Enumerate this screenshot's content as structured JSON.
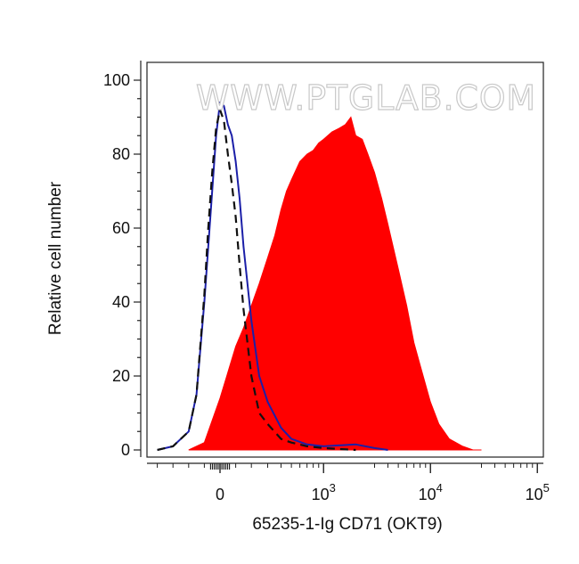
{
  "watermark": "WWW.PTGLAB.COM",
  "chart_data": {
    "type": "area",
    "title": "",
    "xlabel": "65235-1-Ig CD71 (OKT9)",
    "ylabel": "Relative cell number",
    "x_scale": "biexponential",
    "xlim": [
      -300,
      100000
    ],
    "ylim": [
      0,
      100
    ],
    "x_ticks": [
      {
        "value": 0,
        "base": "0",
        "exp": ""
      },
      {
        "value": 1000,
        "base": "10",
        "exp": "3"
      },
      {
        "value": 10000,
        "base": "10",
        "exp": "4"
      },
      {
        "value": 100000,
        "base": "10",
        "exp": "5"
      }
    ],
    "y_ticks": [
      0,
      20,
      40,
      60,
      80,
      100
    ],
    "grid": false,
    "legend": "none",
    "series": [
      {
        "style": "filled",
        "color": "#ff0000",
        "x": [
          -200,
          -100,
          -50,
          0,
          50,
          100,
          150,
          200,
          250,
          300,
          350,
          400,
          450,
          500,
          600,
          700,
          800,
          900,
          1000,
          1200,
          1400,
          1600,
          1800,
          2000,
          2300,
          2600,
          3000,
          3500,
          4000,
          5000,
          6000,
          7000,
          8000,
          10000,
          12000,
          15000,
          20000,
          25000,
          30000
        ],
        "y": [
          0,
          2,
          8,
          14,
          21,
          28,
          33,
          39,
          45,
          52,
          58,
          65,
          70,
          73,
          78,
          80,
          81,
          83,
          84,
          86,
          87,
          88,
          90,
          85,
          84,
          80,
          75,
          68,
          61,
          49,
          39,
          29,
          23,
          13,
          7,
          3,
          1,
          0,
          0
        ]
      },
      {
        "style": "line",
        "color": "#1b1fa8",
        "x": [
          -400,
          -300,
          -200,
          -150,
          -100,
          -75,
          -50,
          -25,
          0,
          25,
          50,
          75,
          100,
          125,
          150,
          200,
          250,
          300,
          400,
          500,
          700,
          1000,
          2000,
          3000,
          4000
        ],
        "y": [
          0,
          1,
          5,
          15,
          40,
          55,
          70,
          85,
          94,
          93,
          88,
          85,
          78,
          68,
          55,
          35,
          20,
          13,
          6,
          3,
          1.5,
          1,
          1.5,
          0.5,
          0
        ]
      },
      {
        "style": "dashed",
        "color": "#111111",
        "x": [
          -400,
          -300,
          -200,
          -150,
          -100,
          -75,
          -50,
          -25,
          0,
          25,
          50,
          75,
          100,
          125,
          150,
          200,
          250,
          300,
          400,
          500,
          700,
          1000,
          2000
        ],
        "y": [
          0,
          1,
          5,
          15,
          42,
          60,
          75,
          87,
          92,
          89,
          80,
          72,
          63,
          50,
          38,
          20,
          10,
          7,
          3,
          2,
          1,
          0.5,
          0
        ]
      }
    ]
  }
}
